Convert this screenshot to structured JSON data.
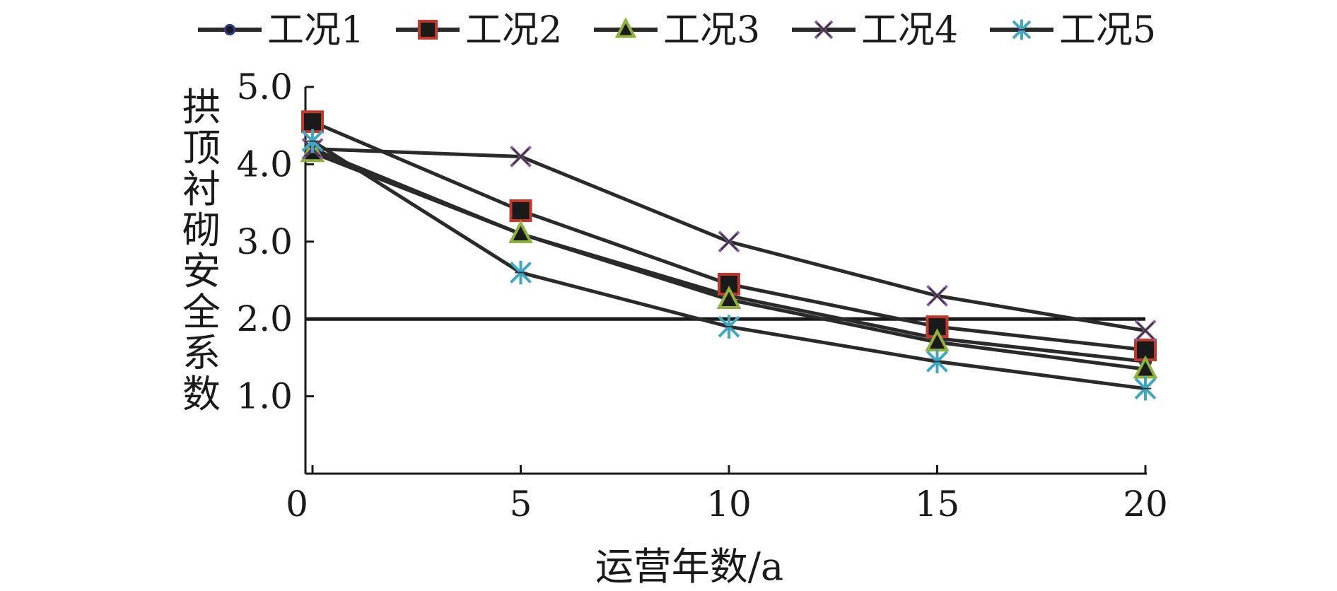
{
  "chart_data": {
    "type": "line",
    "xlabel": "运营年数/a",
    "ylabel": "拱顶衬砌安全系数",
    "x": [
      0,
      5,
      10,
      15,
      20
    ],
    "x_tick_labels": [
      "0",
      "5",
      "10",
      "15",
      "20"
    ],
    "y_tick_labels": [
      "1.0",
      "2.0",
      "3.0",
      "4.0",
      "5.0"
    ],
    "xlim": [
      0,
      20
    ],
    "ylim": [
      0,
      5
    ],
    "grid": false,
    "legend_position": "top",
    "series": [
      {
        "name": "工况1",
        "marker": "dot",
        "marker_color": "#2b3a8c",
        "values": [
          4.2,
          3.1,
          2.3,
          1.75,
          1.45
        ]
      },
      {
        "name": "工况2",
        "marker": "square",
        "marker_color": "#c0392b",
        "values": [
          4.55,
          3.4,
          2.45,
          1.9,
          1.6
        ]
      },
      {
        "name": "工况3",
        "marker": "triangle",
        "marker_color": "#8fb33a",
        "values": [
          4.15,
          3.1,
          2.25,
          1.7,
          1.35
        ]
      },
      {
        "name": "工况4",
        "marker": "x",
        "marker_color": "#8e5ba8",
        "values": [
          4.2,
          4.1,
          3.0,
          2.3,
          1.85
        ]
      },
      {
        "name": "工况5",
        "marker": "star",
        "marker_color": "#3fa7c4",
        "values": [
          4.3,
          2.6,
          1.9,
          1.45,
          1.1
        ]
      }
    ],
    "reference_line": {
      "y": 2.0
    }
  }
}
